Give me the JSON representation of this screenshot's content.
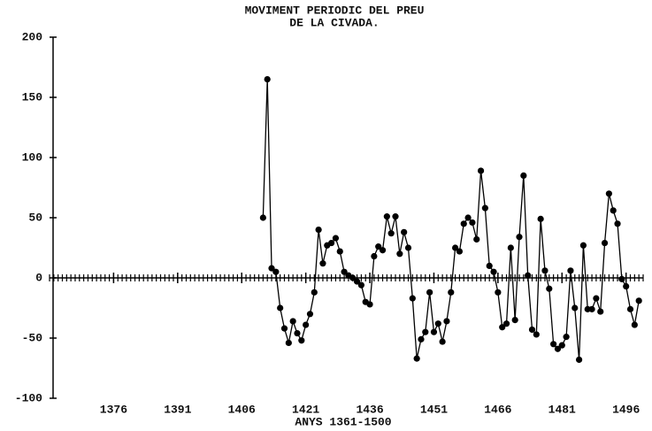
{
  "chart_data": {
    "type": "line",
    "title": [
      "MOVIMENT PERIODIC DEL PREU",
      "DE LA CIVADA."
    ],
    "x_label": "ANYS 1361-1500",
    "xlim": [
      1361,
      1500
    ],
    "xticks": [
      1376,
      1391,
      1406,
      1421,
      1436,
      1451,
      1466,
      1481,
      1496
    ],
    "xticks_minor": [
      1361,
      1362,
      1363,
      1364,
      1365,
      1366,
      1367,
      1368,
      1369,
      1370,
      1371,
      1372,
      1373,
      1374,
      1375,
      1376,
      1377,
      1378,
      1379,
      1380,
      1381,
      1382,
      1383,
      1384,
      1385,
      1386,
      1387,
      1388,
      1389,
      1390,
      1391,
      1392,
      1393,
      1394,
      1395,
      1396,
      1397,
      1398,
      1399,
      1400,
      1401,
      1402,
      1403,
      1404,
      1405,
      1406,
      1407,
      1408,
      1409,
      1410,
      1411,
      1412,
      1413,
      1414,
      1415,
      1416,
      1417,
      1418,
      1419,
      1420,
      1421,
      1422,
      1423,
      1424,
      1425,
      1426,
      1427,
      1428,
      1429,
      1430,
      1431,
      1432,
      1433,
      1434,
      1435,
      1436,
      1437,
      1438,
      1439,
      1440,
      1441,
      1442,
      1443,
      1444,
      1445,
      1446,
      1447,
      1448,
      1449,
      1450,
      1451,
      1452,
      1453,
      1454,
      1455,
      1456,
      1457,
      1458,
      1459,
      1460,
      1461,
      1462,
      1463,
      1464,
      1465,
      1466,
      1467,
      1468,
      1469,
      1470,
      1471,
      1472,
      1473,
      1474,
      1475,
      1476,
      1477,
      1478,
      1479,
      1480,
      1481,
      1482,
      1483,
      1484,
      1485,
      1486,
      1487,
      1488,
      1489,
      1490,
      1491,
      1492,
      1493,
      1494,
      1495,
      1496,
      1497,
      1498,
      1499,
      1500
    ],
    "ylim": [
      -100,
      200
    ],
    "yticks": [
      -100,
      -50,
      0,
      50,
      100,
      150,
      200
    ],
    "color": "#000000",
    "x": [
      1411,
      1412,
      1413,
      1414,
      1415,
      1416,
      1417,
      1418,
      1419,
      1420,
      1421,
      1422,
      1423,
      1424,
      1425,
      1426,
      1427,
      1428,
      1429,
      1430,
      1431,
      1432,
      1433,
      1434,
      1435,
      1436,
      1437,
      1438,
      1439,
      1440,
      1441,
      1442,
      1443,
      1444,
      1445,
      1446,
      1447,
      1448,
      1449,
      1450,
      1451,
      1452,
      1453,
      1454,
      1455,
      1456,
      1457,
      1458,
      1459,
      1460,
      1461,
      1462,
      1463,
      1464,
      1465,
      1466,
      1467,
      1468,
      1469,
      1470,
      1471,
      1472,
      1473,
      1474,
      1475,
      1476,
      1477,
      1478,
      1479,
      1480,
      1481,
      1482,
      1483,
      1484,
      1485,
      1486,
      1487,
      1488,
      1489,
      1490,
      1491,
      1492,
      1493,
      1494,
      1495,
      1496,
      1497,
      1498,
      1499
    ],
    "values": [
      50,
      165,
      8,
      5,
      -25,
      -42,
      -54,
      -36,
      -46,
      -52,
      -39,
      -30,
      -12,
      40,
      12,
      27,
      29,
      33,
      22,
      5,
      2,
      0,
      -3,
      -6,
      -20,
      -22,
      18,
      26,
      23,
      51,
      37,
      51,
      20,
      38,
      25,
      -17,
      -67,
      -51,
      -45,
      -12,
      -45,
      -38,
      -53,
      -36,
      -12,
      25,
      22,
      45,
      50,
      46,
      32,
      89,
      58,
      10,
      5,
      -12,
      -41,
      -38,
      25,
      -35,
      34,
      85,
      2,
      -43,
      -47,
      49,
      6,
      -9,
      -55,
      -59,
      -56,
      -49,
      6,
      -25,
      -68,
      27,
      -26,
      -26,
      -17,
      -28,
      29,
      70,
      56,
      45,
      -1,
      -7,
      -26,
      -39,
      -19
    ]
  }
}
